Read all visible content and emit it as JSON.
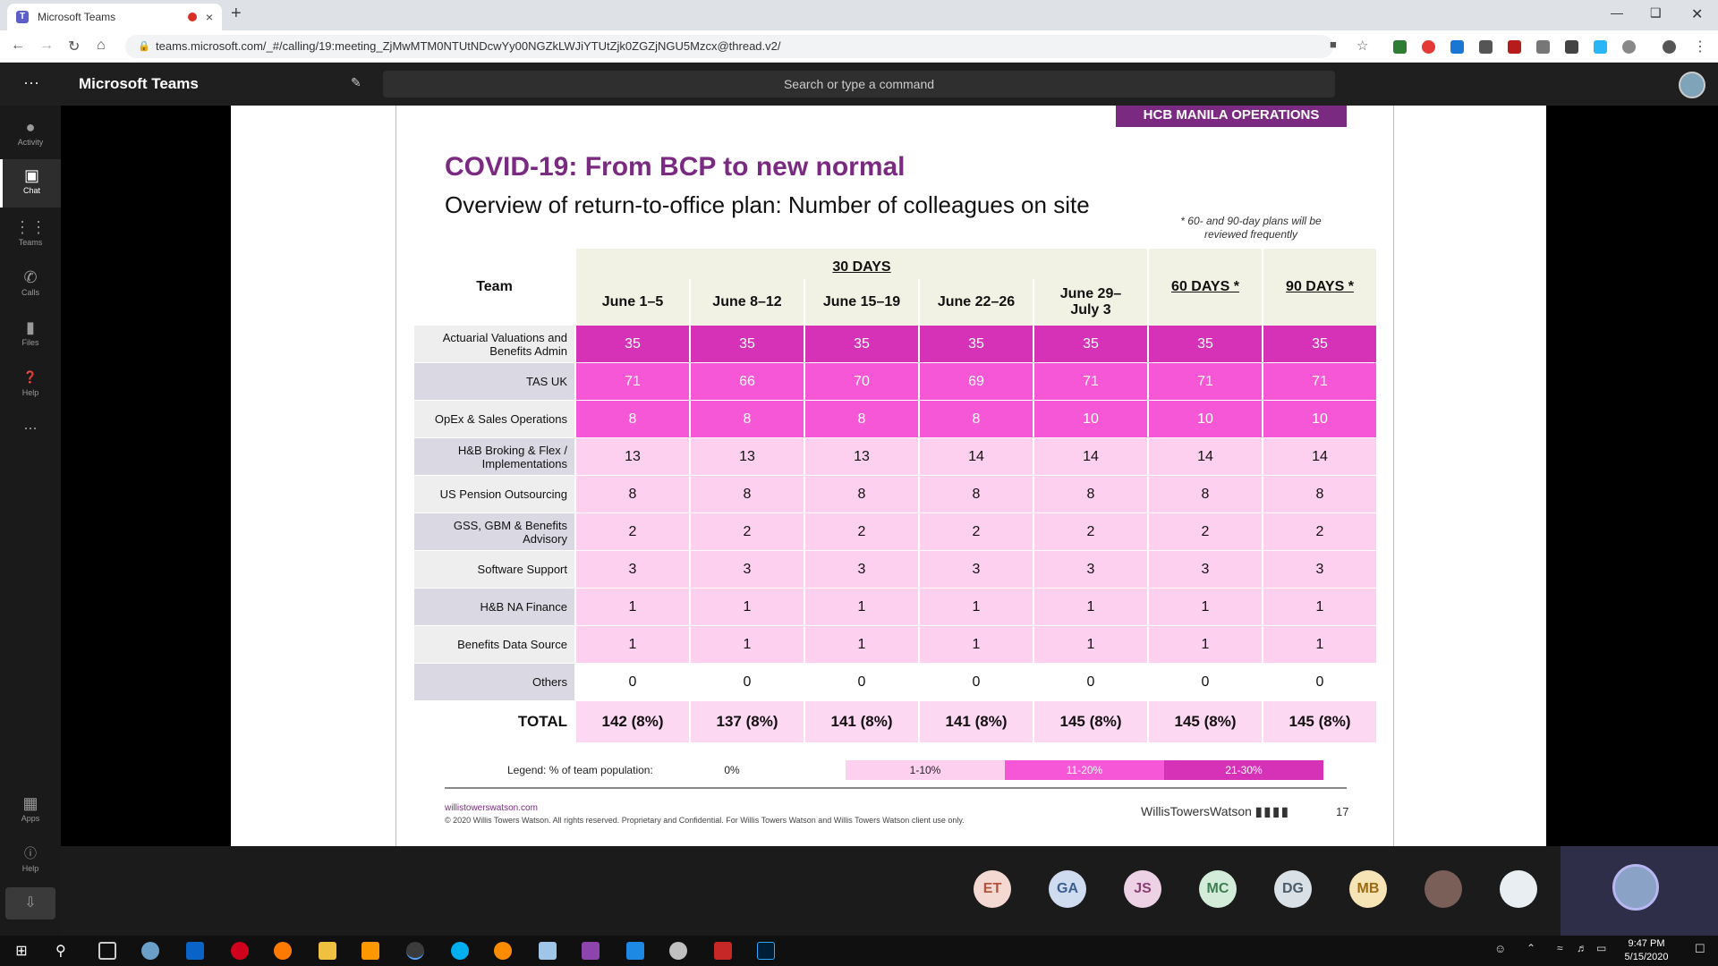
{
  "browser": {
    "tab_title": "Microsoft Teams",
    "tab_close": "×",
    "new_tab": "+",
    "url": "teams.microsoft.com/_#/calling/19:meeting_ZjMwMTM0NTUtNDcwYy00NGZkLWJiYTUtZjk0ZGZjNGU5Mzcx@thread.v2/"
  },
  "teams": {
    "app_name": "Microsoft Teams",
    "search_placeholder": "Search or type a command",
    "rail": [
      {
        "label": "Activity",
        "icon": "bell-icon"
      },
      {
        "label": "Chat",
        "icon": "chat-icon"
      },
      {
        "label": "Teams",
        "icon": "teams-icon"
      },
      {
        "label": "Calls",
        "icon": "phone-icon"
      },
      {
        "label": "Files",
        "icon": "file-icon"
      },
      {
        "label": "Help",
        "icon": "help-icon"
      },
      {
        "label": "...",
        "icon": "more-icon"
      },
      {
        "label": "Apps",
        "icon": "apps-icon"
      },
      {
        "label": "Help",
        "icon": "help-icon"
      }
    ]
  },
  "slide": {
    "badge": "HCB MANILA OPERATIONS",
    "title": "COVID-19: From BCP to new normal",
    "subtitle": "Overview of return-to-office plan: Number of colleagues on site",
    "note": "* 60- and 90-day plans will be reviewed frequently",
    "header_team": "Team",
    "header_30days": "30 DAYS",
    "periods": [
      "June 1–5",
      "June 8–12",
      "June 15–19",
      "June 22–26",
      "June 29–\nJuly 3"
    ],
    "header_60": "60 DAYS *",
    "header_90": "90 DAYS *",
    "rows": [
      {
        "team": "Actuarial Valuations and Benefits Admin",
        "values": [
          "35",
          "35",
          "35",
          "35",
          "35",
          "35",
          "35"
        ],
        "level": 3
      },
      {
        "team": "TAS UK",
        "values": [
          "71",
          "66",
          "70",
          "69",
          "71",
          "71",
          "71"
        ],
        "level": 2
      },
      {
        "team": "OpEx & Sales Operations",
        "values": [
          "8",
          "8",
          "8",
          "8",
          "10",
          "10",
          "10"
        ],
        "level": 2
      },
      {
        "team": "H&B Broking & Flex / Implementations",
        "values": [
          "13",
          "13",
          "13",
          "14",
          "14",
          "14",
          "14"
        ],
        "level": 1
      },
      {
        "team": "US Pension Outsourcing",
        "values": [
          "8",
          "8",
          "8",
          "8",
          "8",
          "8",
          "8"
        ],
        "level": 1
      },
      {
        "team": "GSS, GBM & Benefits Advisory",
        "values": [
          "2",
          "2",
          "2",
          "2",
          "2",
          "2",
          "2"
        ],
        "level": 1
      },
      {
        "team": "Software Support",
        "values": [
          "3",
          "3",
          "3",
          "3",
          "3",
          "3",
          "3"
        ],
        "level": 1
      },
      {
        "team": "H&B NA Finance",
        "values": [
          "1",
          "1",
          "1",
          "1",
          "1",
          "1",
          "1"
        ],
        "level": 1
      },
      {
        "team": "Benefits Data Source",
        "values": [
          "1",
          "1",
          "1",
          "1",
          "1",
          "1",
          "1"
        ],
        "level": 1
      },
      {
        "team": "Others",
        "values": [
          "0",
          "0",
          "0",
          "0",
          "0",
          "0",
          "0"
        ],
        "level": 0
      }
    ],
    "total_label": "TOTAL",
    "totals": [
      "142 (8%)",
      "137 (8%)",
      "141 (8%)",
      "141 (8%)",
      "145 (8%)",
      "145 (8%)",
      "145 (8%)"
    ],
    "legend_title": "Legend: % of team population:",
    "legend": [
      {
        "label": "0%",
        "color": "#ffffff",
        "text": "#222222"
      },
      {
        "label": "1-10%",
        "color": "#fdd0f0",
        "text": "#222222"
      },
      {
        "label": "11-20%",
        "color": "#f657d6",
        "text": "#ffffff"
      },
      {
        "label": "21-30%",
        "color": "#d632b8",
        "text": "#ffffff"
      }
    ],
    "website": "willistowerswatson.com",
    "copyright": "© 2020 Willis Towers Watson. All rights reserved. Proprietary and Confidential. For Willis Towers Watson and Willis Towers Watson client use only.",
    "brand": "WillisTowersWatson",
    "page_number": "17"
  },
  "level_colors": [
    "#ffffff",
    "#fdd0f0",
    "#f657d6",
    "#d632b8"
  ],
  "level_text": [
    "#111111",
    "#111111",
    "#ffffff",
    "#ffffff"
  ],
  "participants": [
    {
      "initials": "ET",
      "bg": "#f4d9d2",
      "fg": "#b5523d"
    },
    {
      "initials": "GA",
      "bg": "#cfdcef",
      "fg": "#3c5e8f"
    },
    {
      "initials": "JS",
      "bg": "#ecd2e4",
      "fg": "#8c3f74"
    },
    {
      "initials": "MC",
      "bg": "#d3ebd9",
      "fg": "#3f7d52"
    },
    {
      "initials": "DG",
      "bg": "#d9e0e6",
      "fg": "#4a5c6a"
    },
    {
      "initials": "MB",
      "bg": "#f6e3b6",
      "fg": "#9a6b12"
    },
    {
      "initials": "",
      "bg": "#7a5e58",
      "fg": "#ffffff"
    },
    {
      "initials": "",
      "bg": "#e8eef2",
      "fg": "#ffffff"
    }
  ],
  "clock": {
    "time": "9:47 PM",
    "date": "5/15/2020"
  }
}
